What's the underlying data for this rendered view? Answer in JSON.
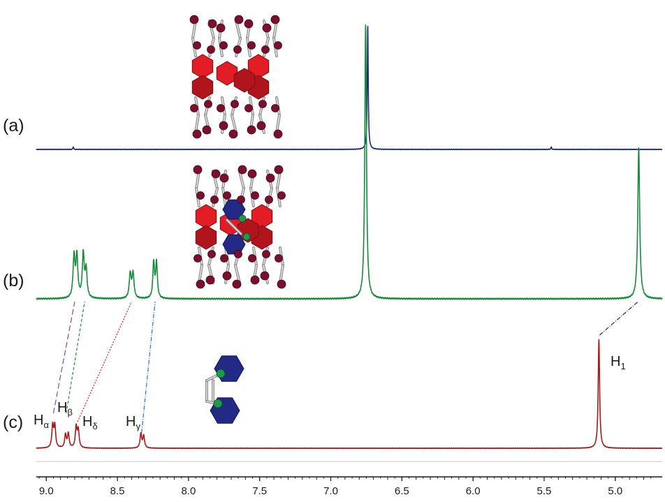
{
  "chart_data": {
    "type": "line",
    "title": "",
    "xlabel": "",
    "ylabel": "",
    "xlim": [
      9.07,
      4.67
    ],
    "x_reversed": true,
    "x_ticks": [
      "9.0",
      "8.5",
      "8.0",
      "7.5",
      "7.0",
      "6.5",
      "6.0",
      "5.5",
      "5.0"
    ],
    "x_tick_values": [
      9.0,
      8.5,
      8.0,
      7.5,
      7.0,
      6.5,
      6.0,
      5.5,
      5.0
    ],
    "series": [
      {
        "name": "(a)",
        "color": "#1e2a7a",
        "peaks": [
          {
            "ppm": 8.81,
            "height": 0.02,
            "width": 0.003
          },
          {
            "ppm": 6.74,
            "height": 1.0,
            "width": 0.004
          },
          {
            "ppm": 5.45,
            "height": 0.02,
            "width": 0.003
          }
        ]
      },
      {
        "name": "(b)",
        "color": "#168a3a",
        "peaks": [
          {
            "ppm": 8.805,
            "height": 0.15,
            "width": 0.008
          },
          {
            "ppm": 8.785,
            "height": 0.15,
            "width": 0.008
          },
          {
            "ppm": 8.74,
            "height": 0.16,
            "width": 0.008
          },
          {
            "ppm": 8.72,
            "height": 0.1,
            "width": 0.008
          },
          {
            "ppm": 8.41,
            "height": 0.09,
            "width": 0.008
          },
          {
            "ppm": 8.39,
            "height": 0.09,
            "width": 0.008
          },
          {
            "ppm": 8.245,
            "height": 0.13,
            "width": 0.007
          },
          {
            "ppm": 8.225,
            "height": 0.13,
            "width": 0.007
          },
          {
            "ppm": 6.755,
            "height": 1.0,
            "width": 0.007
          },
          {
            "ppm": 4.835,
            "height": 0.55,
            "width": 0.008
          }
        ]
      },
      {
        "name": "(c)",
        "color": "#a01c1c",
        "peaks": [
          {
            "ppm": 8.955,
            "height": 0.2,
            "width": 0.007
          },
          {
            "ppm": 8.94,
            "height": 0.2,
            "width": 0.007
          },
          {
            "ppm": 8.865,
            "height": 0.12,
            "width": 0.007
          },
          {
            "ppm": 8.845,
            "height": 0.13,
            "width": 0.007
          },
          {
            "ppm": 8.79,
            "height": 0.19,
            "width": 0.007
          },
          {
            "ppm": 8.775,
            "height": 0.16,
            "width": 0.007
          },
          {
            "ppm": 8.335,
            "height": 0.13,
            "width": 0.007
          },
          {
            "ppm": 8.315,
            "height": 0.11,
            "width": 0.007
          },
          {
            "ppm": 5.115,
            "height": 1.0,
            "width": 0.006
          }
        ]
      }
    ],
    "trace_labels": [
      "(a)",
      "(b)",
      "(c)"
    ],
    "peak_labels": [
      {
        "base": "H",
        "sub": "α",
        "ppm": 8.95
      },
      {
        "base": "H",
        "sub": "β",
        "ppm": 8.85
      },
      {
        "base": "H",
        "sub": "δ",
        "ppm": 8.78
      },
      {
        "base": "H",
        "sub": "γ",
        "ppm": 8.32
      },
      {
        "base": "H",
        "sub": "1",
        "ppm": 5.11
      }
    ],
    "correlations": [
      {
        "from_ppm": 8.95,
        "to_ppm": 8.8,
        "color": "#7a4fa0",
        "dash": "8,4"
      },
      {
        "from_ppm": 8.86,
        "to_ppm": 8.73,
        "color": "#1e8a3a",
        "dash": "4,3"
      },
      {
        "from_ppm": 8.78,
        "to_ppm": 8.4,
        "color": "#e0191a",
        "dash": "2,2"
      },
      {
        "from_ppm": 8.33,
        "to_ppm": 8.235,
        "color": "#2a6ec8",
        "dash": "6,2,1,2"
      },
      {
        "from_ppm": 5.11,
        "to_ppm": 4.84,
        "color": "#1b1f80",
        "dash": "6,2,1,2"
      }
    ],
    "structures": [
      {
        "name": "cage-host",
        "trace": "(a)"
      },
      {
        "name": "host-guest-complex",
        "trace": "(b)"
      },
      {
        "name": "guest-molecule",
        "trace": "(c)"
      }
    ]
  }
}
